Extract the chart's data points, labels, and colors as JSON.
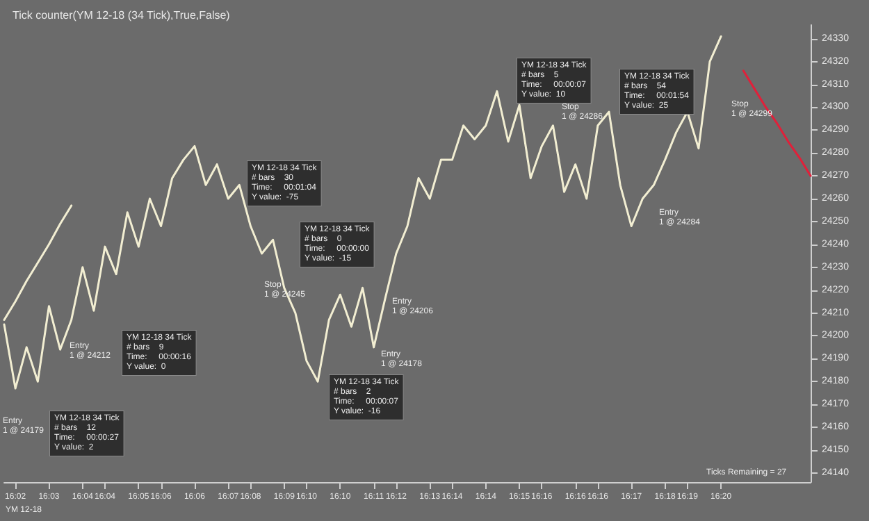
{
  "chart_data": {
    "type": "line",
    "title": "Tick counter(YM 12-18 (34 Tick),True,False)",
    "categories": [
      null,
      "16:02",
      null,
      null,
      "16:03",
      null,
      null,
      "16:04",
      null,
      "16:04",
      null,
      null,
      "16:05",
      null,
      "16:06",
      null,
      null,
      "16:06",
      null,
      null,
      "16:07",
      null,
      "16:08",
      null,
      null,
      "16:09",
      null,
      "16:10",
      null,
      null,
      "16:10",
      null,
      null,
      "16:11",
      null,
      "16:12",
      null,
      null,
      "16:13",
      null,
      "16:14",
      null,
      null,
      "16:14",
      null,
      null,
      "16:15",
      null,
      "16:16",
      null,
      null,
      "16:16",
      null,
      "16:16",
      null,
      null,
      "16:17",
      null,
      null,
      "16:18",
      null,
      "16:19",
      null,
      null,
      "16:20",
      null,
      null,
      null,
      null,
      null,
      null,
      null,
      null
    ],
    "ylim": [
      24136,
      24336
    ],
    "yticks": [
      24140,
      24150,
      24160,
      24170,
      24180,
      24190,
      24200,
      24210,
      24220,
      24230,
      24240,
      24250,
      24260,
      24270,
      24280,
      24290,
      24300,
      24310,
      24320,
      24330
    ],
    "grid": false,
    "marker": "none",
    "line_style": "solid",
    "series": [
      {
        "color": "#f2eed2",
        "values": [
          24205,
          24177,
          24195,
          24180,
          24213,
          24194,
          24207,
          24230,
          24211,
          24239,
          24227,
          24254,
          24239,
          24260,
          24248,
          24269,
          24277,
          24283,
          24266,
          24275,
          24260,
          24266,
          24248,
          24236,
          24242,
          24221,
          24210,
          24189,
          24180,
          24207,
          24218,
          24204,
          24221,
          24195,
          24216,
          24236,
          24248,
          24269,
          24260,
          24277,
          24277,
          24292,
          24286,
          24292,
          24307,
          24285,
          24301,
          24269,
          24283,
          24292,
          24263,
          24275,
          24260,
          24292,
          24298,
          24266,
          24248,
          24260,
          24266,
          24277,
          24289,
          24298,
          24282,
          24320,
          24331,
          null,
          null,
          null,
          null,
          null,
          null,
          null,
          null
        ]
      },
      {
        "color": "#f2eed2",
        "values": [
          24207,
          24215,
          24224,
          24232,
          24240,
          24249,
          24257,
          null,
          null,
          null,
          null,
          null,
          null,
          null,
          null,
          null,
          null,
          null,
          null,
          null,
          null,
          null,
          null,
          null,
          null,
          null,
          null,
          null,
          null,
          null,
          null,
          null,
          null,
          null,
          null,
          null,
          null,
          null,
          null,
          null,
          null,
          null,
          null,
          null,
          null,
          null,
          null,
          null,
          null,
          null,
          null,
          null,
          null,
          null,
          null,
          null,
          null,
          null,
          null,
          null,
          null,
          null,
          null,
          null,
          null,
          null,
          null,
          null,
          null,
          null,
          null,
          null,
          null
        ]
      },
      {
        "color": "#e0203a",
        "values": [
          null,
          null,
          null,
          null,
          null,
          null,
          null,
          null,
          null,
          null,
          null,
          null,
          null,
          null,
          null,
          null,
          null,
          null,
          null,
          null,
          null,
          null,
          null,
          null,
          null,
          null,
          null,
          null,
          null,
          null,
          null,
          null,
          null,
          null,
          null,
          null,
          null,
          null,
          null,
          null,
          null,
          null,
          null,
          null,
          null,
          null,
          null,
          null,
          null,
          null,
          null,
          null,
          null,
          null,
          null,
          null,
          null,
          null,
          null,
          null,
          null,
          null,
          null,
          null,
          null,
          null,
          24316,
          24308,
          24300,
          24293,
          24285,
          24278,
          24270
        ]
      }
    ],
    "annotations": [
      "YM 12-18",
      "Ticks Remaining = 27",
      "YM 12-18 34 Tick\n# bars    12\nTime:     00:00:27\nY value:  2",
      "YM 12-18 34 Tick\n# bars    9\nTime:     00:00:16\nY value:  0",
      "YM 12-18 34 Tick\n# bars    30\nTime:     00:01:04\nY value:  -75",
      "YM 12-18 34 Tick\n# bars    0\nTime:     00:00:00\nY value:  -15",
      "YM 12-18 34 Tick\n# bars    2\nTime:     00:00:07\nY value:  -16",
      "YM 12-18 34 Tick\n# bars    5\nTime:     00:00:07\nY value:  10",
      "YM 12-18 34 Tick\n# bars    54\nTime:     00:01:54\nY value:  25",
      "Entry\n1 @ 24179",
      "Entry\n1 @ 24212",
      "Stop\n1 @ 24245",
      "Entry\n1 @ 24178",
      "Entry\n1 @ 24206",
      "Entry\n1 @ 24284",
      "Stop\n1 @ 24286",
      "Stop\n1 @ 24299"
    ]
  }
}
